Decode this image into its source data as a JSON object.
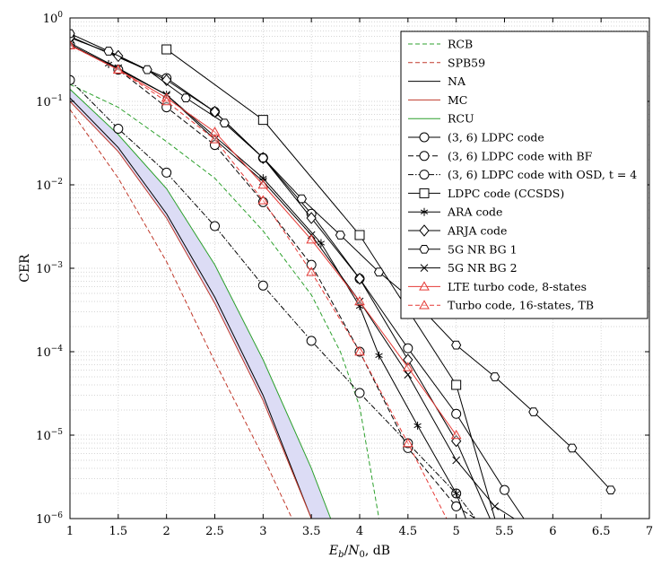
{
  "chart_data": {
    "type": "line",
    "xlabel": "E_b/N_0, dB",
    "xlabel_parts": {
      "E": "E",
      "b": "b",
      "slash": "/",
      "N": "N",
      "zero": "0",
      "unit": ", dB"
    },
    "ylabel": "CER",
    "xlim": [
      1,
      7
    ],
    "ylim": [
      1e-06,
      1
    ],
    "yscale": "log",
    "grid": true,
    "legend_position": "top-right",
    "x_ticks": [
      {
        "v": 1,
        "t": "1"
      },
      {
        "v": 1.5,
        "t": "1.5"
      },
      {
        "v": 2,
        "t": "2"
      },
      {
        "v": 2.5,
        "t": "2.5"
      },
      {
        "v": 3,
        "t": "3"
      },
      {
        "v": 3.5,
        "t": "3.5"
      },
      {
        "v": 4,
        "t": "4"
      },
      {
        "v": 4.5,
        "t": "4.5"
      },
      {
        "v": 5,
        "t": "5"
      },
      {
        "v": 5.5,
        "t": "5.5"
      },
      {
        "v": 6,
        "t": "6"
      },
      {
        "v": 6.5,
        "t": "6.5"
      },
      {
        "v": 7,
        "t": "7"
      }
    ],
    "y_ticks": [
      {
        "e": 0,
        "m": "10",
        "s": "0"
      },
      {
        "e": -1,
        "m": "10",
        "s": "−1"
      },
      {
        "e": -2,
        "m": "10",
        "s": "−2"
      },
      {
        "e": -3,
        "m": "10",
        "s": "−3"
      },
      {
        "e": -4,
        "m": "10",
        "s": "−4"
      },
      {
        "e": -5,
        "m": "10",
        "s": "−5"
      },
      {
        "e": -6,
        "m": "10",
        "s": "−6"
      }
    ],
    "shaded_band": {
      "between": [
        "MC",
        "RCU"
      ],
      "fill": "#dcdcf5"
    },
    "series": [
      {
        "name": "RCB",
        "color": "#2ca02c",
        "dash": "5,3",
        "marker": "none",
        "x": [
          1.0,
          1.5,
          2.0,
          2.5,
          3.0,
          3.5,
          3.8,
          4.0,
          4.2
        ],
        "y": [
          0.16,
          0.085,
          0.033,
          0.012,
          0.0028,
          0.00048,
          0.0001,
          2.2e-05,
          1e-06
        ]
      },
      {
        "name": "SPB59",
        "color": "#c0392b",
        "dash": "5,3",
        "marker": "none",
        "x": [
          1.0,
          1.5,
          2.0,
          2.5,
          3.0,
          3.3
        ],
        "y": [
          0.08,
          0.012,
          0.0012,
          7.6e-05,
          5.5e-06,
          1e-06
        ]
      },
      {
        "name": "NA",
        "color": "#000000",
        "dash": "",
        "marker": "none",
        "x": [
          1.0,
          1.5,
          2.0,
          2.5,
          3.0,
          3.5
        ],
        "y": [
          0.11,
          0.028,
          0.0045,
          0.00045,
          3e-05,
          1e-06
        ]
      },
      {
        "name": "MC",
        "color": "#c0392b",
        "dash": "",
        "marker": "none",
        "x": [
          1.0,
          1.5,
          2.0,
          2.5,
          3.0,
          3.5
        ],
        "y": [
          0.1,
          0.025,
          0.004,
          0.00038,
          2.6e-05,
          1e-06
        ]
      },
      {
        "name": "RCU",
        "color": "#2ca02c",
        "dash": "",
        "marker": "none",
        "x": [
          1.0,
          1.5,
          2.0,
          2.5,
          3.0,
          3.5,
          3.7
        ],
        "y": [
          0.14,
          0.04,
          0.009,
          0.0011,
          8e-05,
          4e-06,
          1e-06
        ]
      },
      {
        "name": "(3, 6) LDPC code",
        "color": "#000000",
        "dash": "",
        "marker": "circle",
        "x": [
          1.0,
          2.0,
          2.5,
          3.0,
          3.5,
          4.0,
          4.5,
          5.0,
          5.5,
          5.7
        ],
        "y": [
          0.6,
          0.19,
          0.075,
          0.021,
          0.0045,
          0.00075,
          0.00011,
          1.8e-05,
          2.2e-06,
          1e-06
        ]
      },
      {
        "name": "(3, 6) LDPC code with BF",
        "color": "#000000",
        "dash": "6,3",
        "marker": "circle",
        "x": [
          1.0,
          1.5,
          2.0,
          2.5,
          3.0,
          3.5,
          4.0,
          4.5,
          5.0,
          5.2
        ],
        "y": [
          0.48,
          0.24,
          0.085,
          0.03,
          0.0062,
          0.0011,
          0.0001,
          7e-06,
          1.4e-06,
          1e-06
        ]
      },
      {
        "name": "(3, 6) LDPC code with OSD, t = 4",
        "color": "#000000",
        "dash": "6,2,1.5,2",
        "marker": "circle",
        "x": [
          1.0,
          1.5,
          2.0,
          2.5,
          3.0,
          3.5,
          4.0,
          4.5,
          5.0,
          5.2
        ],
        "y": [
          0.18,
          0.047,
          0.014,
          0.0032,
          0.00062,
          0.000135,
          3.2e-05,
          8e-06,
          2e-06,
          1e-06
        ]
      },
      {
        "name": "LDPC code (CCSDS)",
        "color": "#000000",
        "dash": "",
        "marker": "square",
        "x": [
          2.0,
          3.0,
          4.0,
          5.0,
          5.4
        ],
        "y": [
          0.42,
          0.06,
          0.0025,
          4e-05,
          1e-06
        ]
      },
      {
        "name": "ARA code",
        "color": "#000000",
        "dash": "",
        "marker": "star",
        "x": [
          1.0,
          1.4,
          2.0,
          3.0,
          3.6,
          4.0,
          4.2,
          4.6,
          5.0,
          5.1
        ],
        "y": [
          0.48,
          0.28,
          0.12,
          0.012,
          0.002,
          0.00035,
          9e-05,
          1.3e-05,
          2e-06,
          1e-06
        ]
      },
      {
        "name": "ARJA code",
        "color": "#000000",
        "dash": "",
        "marker": "diamond",
        "x": [
          1.0,
          1.5,
          2.0,
          2.5,
          3.0,
          3.5,
          4.0,
          4.5,
          5.0,
          5.35
        ],
        "y": [
          0.58,
          0.35,
          0.18,
          0.075,
          0.021,
          0.004,
          0.00075,
          8e-05,
          8.5e-06,
          1e-06
        ]
      },
      {
        "name": "5G NR BG 1",
        "color": "#000000",
        "dash": "",
        "marker": "hexagon",
        "x": [
          1.0,
          1.4,
          1.8,
          2.2,
          2.6,
          3.0,
          3.4,
          3.8,
          4.2,
          4.6,
          5.0,
          5.4,
          5.8,
          6.2,
          6.6
        ],
        "y": [
          0.65,
          0.4,
          0.24,
          0.11,
          0.055,
          0.021,
          0.0068,
          0.0025,
          0.0009,
          0.00037,
          0.00012,
          5e-05,
          1.9e-05,
          7e-06,
          2.2e-06
        ]
      },
      {
        "name": "5G NR BG 2",
        "color": "#000000",
        "dash": "",
        "marker": "x",
        "x": [
          1.0,
          1.5,
          2.0,
          2.5,
          3.0,
          3.5,
          4.0,
          4.5,
          5.0,
          5.4,
          5.6
        ],
        "y": [
          0.5,
          0.25,
          0.12,
          0.035,
          0.011,
          0.0025,
          0.0004,
          5.3e-05,
          5e-06,
          1.4e-06,
          1e-06
        ]
      },
      {
        "name": "LTE turbo code, 8-states",
        "color": "#e53935",
        "dash": "",
        "marker": "triangle",
        "x": [
          1.0,
          1.5,
          2.0,
          2.5,
          3.0,
          3.5,
          4.0,
          4.5,
          5.0
        ],
        "y": [
          0.47,
          0.24,
          0.11,
          0.043,
          0.01,
          0.0022,
          0.0004,
          6.5e-05,
          1e-05
        ]
      },
      {
        "name": "Turbo code, 16-states, TB",
        "color": "#e53935",
        "dash": "5,3",
        "marker": "triangle",
        "x": [
          1.0,
          1.5,
          2.0,
          2.5,
          3.0,
          3.5,
          4.0,
          4.5,
          4.9
        ],
        "y": [
          0.47,
          0.24,
          0.1,
          0.035,
          0.0065,
          0.0009,
          0.0001,
          8e-06,
          1e-06
        ]
      }
    ]
  }
}
